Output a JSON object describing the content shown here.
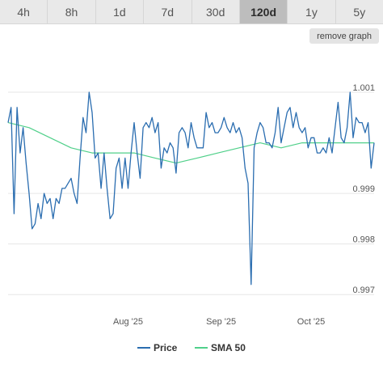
{
  "tabs": [
    {
      "label": "4h",
      "active": false
    },
    {
      "label": "8h",
      "active": false
    },
    {
      "label": "1d",
      "active": false
    },
    {
      "label": "7d",
      "active": false
    },
    {
      "label": "30d",
      "active": false
    },
    {
      "label": "120d",
      "active": true
    },
    {
      "label": "1y",
      "active": false
    },
    {
      "label": "5y",
      "active": false
    }
  ],
  "remove_graph_label": "remove graph",
  "colors": {
    "price": "#2a6db0",
    "sma": "#50d08a",
    "grid": "#e6e6e6"
  },
  "chart_data": {
    "type": "line",
    "xlim": [
      "2025-06-22",
      "2025-10-22"
    ],
    "ylim": [
      0.9967,
      1.0018
    ],
    "y_ticks": [
      0.997,
      0.998,
      0.999,
      1.001
    ],
    "y_tick_labels": [
      "0.997",
      "0.998",
      "0.999",
      "1.001"
    ],
    "x_ticks": [
      "2025-08-01",
      "2025-09-01",
      "2025-10-01"
    ],
    "x_tick_labels": [
      "Aug '25",
      "Sep '25",
      "Oct '25"
    ],
    "grid": true,
    "legend_position": "bottom",
    "series": [
      {
        "name": "Price",
        "x": [
          "2025-06-22",
          "2025-06-23",
          "2025-06-24",
          "2025-06-25",
          "2025-06-26",
          "2025-06-27",
          "2025-06-28",
          "2025-06-29",
          "2025-06-30",
          "2025-07-01",
          "2025-07-02",
          "2025-07-03",
          "2025-07-04",
          "2025-07-05",
          "2025-07-06",
          "2025-07-07",
          "2025-07-08",
          "2025-07-09",
          "2025-07-10",
          "2025-07-11",
          "2025-07-12",
          "2025-07-13",
          "2025-07-14",
          "2025-07-15",
          "2025-07-16",
          "2025-07-17",
          "2025-07-18",
          "2025-07-19",
          "2025-07-20",
          "2025-07-21",
          "2025-07-22",
          "2025-07-23",
          "2025-07-24",
          "2025-07-25",
          "2025-07-26",
          "2025-07-27",
          "2025-07-28",
          "2025-07-29",
          "2025-07-30",
          "2025-07-31",
          "2025-08-01",
          "2025-08-02",
          "2025-08-03",
          "2025-08-04",
          "2025-08-05",
          "2025-08-06",
          "2025-08-07",
          "2025-08-08",
          "2025-08-09",
          "2025-08-10",
          "2025-08-11",
          "2025-08-12",
          "2025-08-13",
          "2025-08-14",
          "2025-08-15",
          "2025-08-16",
          "2025-08-17",
          "2025-08-18",
          "2025-08-19",
          "2025-08-20",
          "2025-08-21",
          "2025-08-22",
          "2025-08-23",
          "2025-08-24",
          "2025-08-25",
          "2025-08-26",
          "2025-08-27",
          "2025-08-28",
          "2025-08-29",
          "2025-08-30",
          "2025-08-31",
          "2025-09-01",
          "2025-09-02",
          "2025-09-03",
          "2025-09-04",
          "2025-09-05",
          "2025-09-06",
          "2025-09-07",
          "2025-09-08",
          "2025-09-09",
          "2025-09-10",
          "2025-09-11",
          "2025-09-12",
          "2025-09-13",
          "2025-09-14",
          "2025-09-15",
          "2025-09-16",
          "2025-09-17",
          "2025-09-18",
          "2025-09-19",
          "2025-09-20",
          "2025-09-21",
          "2025-09-22",
          "2025-09-23",
          "2025-09-24",
          "2025-09-25",
          "2025-09-26",
          "2025-09-27",
          "2025-09-28",
          "2025-09-29",
          "2025-09-30",
          "2025-10-01",
          "2025-10-02",
          "2025-10-03",
          "2025-10-04",
          "2025-10-05",
          "2025-10-06",
          "2025-10-07",
          "2025-10-08",
          "2025-10-09",
          "2025-10-10",
          "2025-10-11",
          "2025-10-12",
          "2025-10-13",
          "2025-10-14",
          "2025-10-15",
          "2025-10-16",
          "2025-10-17",
          "2025-10-18",
          "2025-10-19",
          "2025-10-20",
          "2025-10-21",
          "2025-10-22"
        ],
        "y": [
          1.0004,
          1.0007,
          0.9986,
          1.0007,
          0.9998,
          1.0003,
          0.9996,
          0.999,
          0.9983,
          0.9984,
          0.9988,
          0.9985,
          0.999,
          0.9988,
          0.9989,
          0.9985,
          0.9989,
          0.9988,
          0.9991,
          0.9991,
          0.9992,
          0.9993,
          0.999,
          0.9988,
          0.9997,
          1.0005,
          1.0002,
          1.001,
          1.0006,
          0.9997,
          0.9998,
          0.9991,
          0.9998,
          0.9991,
          0.9985,
          0.9986,
          0.9995,
          0.9997,
          0.9991,
          0.9997,
          0.9991,
          0.9998,
          1.0004,
          0.9998,
          0.9993,
          1.0003,
          1.0004,
          1.0003,
          1.0005,
          1.0002,
          1.0004,
          0.9995,
          0.9999,
          0.9998,
          1.0,
          0.9999,
          0.9994,
          1.0002,
          1.0003,
          1.0002,
          0.9999,
          1.0004,
          1.0001,
          0.9999,
          0.9999,
          0.9999,
          1.0006,
          1.0003,
          1.0004,
          1.0002,
          1.0002,
          1.0003,
          1.0005,
          1.0003,
          1.0002,
          1.0004,
          1.0002,
          1.0003,
          1.0001,
          0.9995,
          0.9992,
          0.9972,
          0.9999,
          1.0002,
          1.0004,
          1.0003,
          1.0,
          1.0,
          0.9999,
          1.0002,
          1.0007,
          1.0,
          1.0003,
          1.0006,
          1.0007,
          1.0003,
          1.0006,
          1.0003,
          1.0002,
          1.0003,
          0.9999,
          1.0001,
          1.0001,
          0.9998,
          0.9998,
          0.9999,
          0.9998,
          1.0001,
          0.9998,
          1.0003,
          1.0008,
          1.0001,
          1.0,
          1.0003,
          1.001,
          1.0001,
          1.0005,
          1.0004,
          1.0004,
          1.0002,
          1.0004,
          0.9995,
          1.0
        ]
      },
      {
        "name": "SMA 50",
        "x": [
          "2025-06-22",
          "2025-06-29",
          "2025-07-06",
          "2025-07-13",
          "2025-07-20",
          "2025-07-27",
          "2025-08-03",
          "2025-08-10",
          "2025-08-17",
          "2025-08-24",
          "2025-08-31",
          "2025-09-07",
          "2025-09-14",
          "2025-09-21",
          "2025-09-28",
          "2025-10-05",
          "2025-10-12",
          "2025-10-19",
          "2025-10-22"
        ],
        "y": [
          1.0004,
          1.0003,
          1.0001,
          0.9999,
          0.9998,
          0.9998,
          0.9998,
          0.9997,
          0.9996,
          0.9997,
          0.9998,
          0.9999,
          1.0,
          0.9999,
          1.0,
          1.0,
          1.0,
          1.0,
          1.0
        ]
      }
    ]
  }
}
